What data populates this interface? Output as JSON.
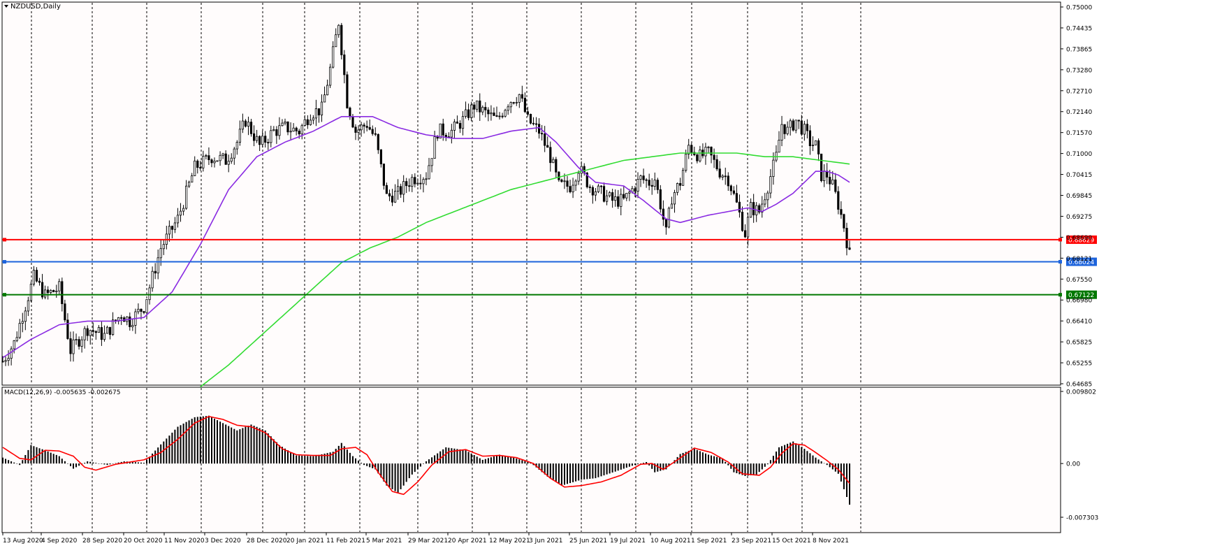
{
  "window": {
    "symbol_label": "NZDUSD,Daily",
    "macd_label": "MACD(12,26,9) -0.005635 -0.002675"
  },
  "colors": {
    "background": "#fffcfc",
    "grid": "#000000",
    "candle": "#000000",
    "ma_fast": "#8a2be2",
    "ma_slow": "#32dc32",
    "macd_signal": "#ff0000",
    "level_red": "#ff0000",
    "level_blue": "#1e64dc",
    "level_green": "#007800"
  },
  "price_axis": {
    "ticks": [
      "0.75000",
      "0.74435",
      "0.73865",
      "0.73280",
      "0.72710",
      "0.72140",
      "0.71570",
      "0.71000",
      "0.70415",
      "0.69845",
      "0.69275",
      "0.68690",
      "0.68121",
      "0.67550",
      "0.66980",
      "0.66410",
      "0.65825",
      "0.65255",
      "0.64685"
    ],
    "range": [
      0.64685,
      0.75
    ]
  },
  "macd_axis": {
    "ticks": [
      "0.009802",
      "0.00",
      "-0.007303"
    ],
    "range": [
      -0.007303,
      0.009802
    ]
  },
  "date_axis": {
    "labels": [
      "13 Aug 2020",
      "4 Sep 2020",
      "28 Sep 2020",
      "20 Oct 2020",
      "11 Nov 2020",
      "3 Dec 2020",
      "28 Dec 2020",
      "20 Jan 2021",
      "11 Feb 2021",
      "5 Mar 2021",
      "29 Mar 2021",
      "20 Apr 2021",
      "12 May 2021",
      "3 Jun 2021",
      "25 Jun 2021",
      "19 Jul 2021",
      "10 Aug 2021",
      "1 Sep 2021",
      "23 Sep 2021",
      "15 Oct 2021",
      "8 Nov 2021"
    ]
  },
  "levels": [
    {
      "name": "resistance-level-red",
      "price": 0.68629,
      "label": "0.68629",
      "color": "#ff0000"
    },
    {
      "name": "current-price-level-blue",
      "price": 0.68024,
      "label": "0.68024",
      "color": "#1e64dc"
    },
    {
      "name": "support-level-green",
      "price": 0.67122,
      "label": "0.67122",
      "color": "#007800"
    }
  ],
  "chart_data": {
    "type": "candlestick",
    "title": "NZDUSD,Daily",
    "ylim": [
      0.64685,
      0.75
    ],
    "price_waypoints": [
      [
        0,
        0.653
      ],
      [
        8,
        0.658
      ],
      [
        22,
        0.676
      ],
      [
        30,
        0.671
      ],
      [
        40,
        0.673
      ],
      [
        48,
        0.656
      ],
      [
        60,
        0.662
      ],
      [
        72,
        0.66
      ],
      [
        84,
        0.666
      ],
      [
        90,
        0.664
      ],
      [
        100,
        0.668
      ],
      [
        112,
        0.684
      ],
      [
        124,
        0.692
      ],
      [
        136,
        0.706
      ],
      [
        148,
        0.709
      ],
      [
        158,
        0.708
      ],
      [
        166,
        0.713
      ],
      [
        172,
        0.719
      ],
      [
        182,
        0.712
      ],
      [
        192,
        0.716
      ],
      [
        200,
        0.717
      ],
      [
        210,
        0.716
      ],
      [
        218,
        0.721
      ],
      [
        226,
        0.722
      ],
      [
        232,
        0.733
      ],
      [
        238,
        0.746
      ],
      [
        244,
        0.724
      ],
      [
        250,
        0.716
      ],
      [
        258,
        0.718
      ],
      [
        264,
        0.714
      ],
      [
        272,
        0.698
      ],
      [
        280,
        0.699
      ],
      [
        290,
        0.703
      ],
      [
        300,
        0.704
      ],
      [
        308,
        0.716
      ],
      [
        318,
        0.716
      ],
      [
        326,
        0.719
      ],
      [
        334,
        0.723
      ],
      [
        342,
        0.721
      ],
      [
        350,
        0.719
      ],
      [
        358,
        0.724
      ],
      [
        366,
        0.726
      ],
      [
        372,
        0.719
      ],
      [
        380,
        0.716
      ],
      [
        388,
        0.709
      ],
      [
        394,
        0.701
      ],
      [
        402,
        0.701
      ],
      [
        408,
        0.706
      ],
      [
        416,
        0.701
      ],
      [
        424,
        0.699
      ],
      [
        432,
        0.697
      ],
      [
        440,
        0.697
      ],
      [
        446,
        0.7
      ],
      [
        452,
        0.703
      ],
      [
        458,
        0.702
      ],
      [
        462,
        0.703
      ],
      [
        466,
        0.696
      ],
      [
        470,
        0.688
      ],
      [
        474,
        0.698
      ],
      [
        480,
        0.702
      ],
      [
        486,
        0.712
      ],
      [
        494,
        0.709
      ],
      [
        500,
        0.71
      ],
      [
        508,
        0.705
      ],
      [
        514,
        0.703
      ],
      [
        520,
        0.696
      ],
      [
        526,
        0.688
      ],
      [
        530,
        0.695
      ],
      [
        536,
        0.694
      ],
      [
        542,
        0.701
      ],
      [
        548,
        0.709
      ],
      [
        552,
        0.718
      ],
      [
        556,
        0.716
      ],
      [
        562,
        0.719
      ],
      [
        568,
        0.716
      ],
      [
        572,
        0.713
      ],
      [
        576,
        0.712
      ],
      [
        580,
        0.704
      ],
      [
        584,
        0.704
      ],
      [
        588,
        0.701
      ],
      [
        592,
        0.696
      ],
      [
        596,
        0.69
      ],
      [
        600,
        0.682
      ]
    ],
    "ma_fast_waypoints": [
      [
        0,
        0.654
      ],
      [
        20,
        0.659
      ],
      [
        40,
        0.663
      ],
      [
        60,
        0.664
      ],
      [
        80,
        0.664
      ],
      [
        100,
        0.665
      ],
      [
        120,
        0.672
      ],
      [
        140,
        0.685
      ],
      [
        160,
        0.7
      ],
      [
        180,
        0.709
      ],
      [
        200,
        0.713
      ],
      [
        220,
        0.716
      ],
      [
        240,
        0.72
      ],
      [
        250,
        0.72
      ],
      [
        262,
        0.72
      ],
      [
        280,
        0.717
      ],
      [
        300,
        0.715
      ],
      [
        320,
        0.714
      ],
      [
        340,
        0.714
      ],
      [
        360,
        0.716
      ],
      [
        380,
        0.717
      ],
      [
        392,
        0.713
      ],
      [
        408,
        0.706
      ],
      [
        420,
        0.702
      ],
      [
        440,
        0.701
      ],
      [
        454,
        0.697
      ],
      [
        470,
        0.692
      ],
      [
        480,
        0.691
      ],
      [
        500,
        0.693
      ],
      [
        514,
        0.694
      ],
      [
        528,
        0.695
      ],
      [
        538,
        0.694
      ],
      [
        548,
        0.696
      ],
      [
        560,
        0.699
      ],
      [
        568,
        0.702
      ],
      [
        576,
        0.705
      ],
      [
        584,
        0.705
      ],
      [
        592,
        0.704
      ],
      [
        600,
        0.702
      ]
    ],
    "ma_slow_waypoints": [
      [
        140,
        0.646
      ],
      [
        160,
        0.652
      ],
      [
        180,
        0.659
      ],
      [
        200,
        0.666
      ],
      [
        220,
        0.673
      ],
      [
        240,
        0.68
      ],
      [
        260,
        0.684
      ],
      [
        280,
        0.687
      ],
      [
        300,
        0.691
      ],
      [
        320,
        0.694
      ],
      [
        340,
        0.697
      ],
      [
        360,
        0.7
      ],
      [
        380,
        0.702
      ],
      [
        400,
        0.704
      ],
      [
        420,
        0.706
      ],
      [
        440,
        0.708
      ],
      [
        460,
        0.709
      ],
      [
        480,
        0.71
      ],
      [
        500,
        0.71
      ],
      [
        520,
        0.71
      ],
      [
        540,
        0.709
      ],
      [
        560,
        0.709
      ],
      [
        580,
        0.708
      ],
      [
        600,
        0.707
      ]
    ],
    "macd_waypoints": [
      [
        0,
        0.0008
      ],
      [
        12,
        -0.0002
      ],
      [
        20,
        0.0025
      ],
      [
        30,
        0.0018
      ],
      [
        40,
        0.001
      ],
      [
        50,
        -0.0007
      ],
      [
        60,
        0.0003
      ],
      [
        74,
        -0.0002
      ],
      [
        86,
        0.0003
      ],
      [
        100,
        0.0001
      ],
      [
        112,
        0.0026
      ],
      [
        124,
        0.005
      ],
      [
        136,
        0.0063
      ],
      [
        146,
        0.0065
      ],
      [
        156,
        0.0055
      ],
      [
        166,
        0.0045
      ],
      [
        176,
        0.0053
      ],
      [
        186,
        0.0045
      ],
      [
        196,
        0.0025
      ],
      [
        208,
        0.0011
      ],
      [
        220,
        0.001
      ],
      [
        234,
        0.0016
      ],
      [
        240,
        0.0028
      ],
      [
        248,
        0.001
      ],
      [
        256,
        -0.0002
      ],
      [
        264,
        -0.0008
      ],
      [
        272,
        -0.003
      ],
      [
        280,
        -0.004
      ],
      [
        290,
        -0.0015
      ],
      [
        300,
        0.0003
      ],
      [
        314,
        0.0022
      ],
      [
        328,
        0.0018
      ],
      [
        340,
        0.0005
      ],
      [
        352,
        0.0012
      ],
      [
        362,
        0.0008
      ],
      [
        374,
        0.0001
      ],
      [
        386,
        -0.0018
      ],
      [
        396,
        -0.003
      ],
      [
        410,
        -0.0022
      ],
      [
        420,
        -0.002
      ],
      [
        434,
        -0.0011
      ],
      [
        446,
        -0.0003
      ],
      [
        456,
        0.0002
      ],
      [
        462,
        -0.0012
      ],
      [
        470,
        -0.0008
      ],
      [
        480,
        0.0013
      ],
      [
        490,
        0.002
      ],
      [
        500,
        0.0012
      ],
      [
        510,
        0.0007
      ],
      [
        518,
        -0.0012
      ],
      [
        526,
        -0.0017
      ],
      [
        534,
        -0.0015
      ],
      [
        542,
        -0.0001
      ],
      [
        550,
        0.0022
      ],
      [
        560,
        0.003
      ],
      [
        568,
        0.002
      ],
      [
        576,
        0.0008
      ],
      [
        584,
        -0.0002
      ],
      [
        592,
        -0.0014
      ],
      [
        600,
        -0.0056
      ]
    ],
    "signal_waypoints": [
      [
        0,
        0.0022
      ],
      [
        12,
        0.0007
      ],
      [
        20,
        0.0005
      ],
      [
        30,
        0.0018
      ],
      [
        40,
        0.0017
      ],
      [
        50,
        0.001
      ],
      [
        58,
        -0.0005
      ],
      [
        66,
        -0.0009
      ],
      [
        80,
        -0.0001
      ],
      [
        100,
        0.0005
      ],
      [
        112,
        0.0015
      ],
      [
        124,
        0.0033
      ],
      [
        136,
        0.0055
      ],
      [
        146,
        0.0064
      ],
      [
        156,
        0.006
      ],
      [
        166,
        0.0052
      ],
      [
        176,
        0.005
      ],
      [
        186,
        0.0042
      ],
      [
        198,
        0.002
      ],
      [
        208,
        0.0012
      ],
      [
        220,
        0.0011
      ],
      [
        232,
        0.0011
      ],
      [
        240,
        0.002
      ],
      [
        250,
        0.0022
      ],
      [
        258,
        0.0012
      ],
      [
        266,
        -0.0012
      ],
      [
        276,
        -0.0038
      ],
      [
        284,
        -0.0042
      ],
      [
        294,
        -0.0025
      ],
      [
        304,
        -0.0002
      ],
      [
        316,
        0.0016
      ],
      [
        328,
        0.0019
      ],
      [
        340,
        0.001
      ],
      [
        352,
        0.0011
      ],
      [
        364,
        0.0008
      ],
      [
        376,
        0.0
      ],
      [
        388,
        -0.002
      ],
      [
        398,
        -0.0032
      ],
      [
        410,
        -0.003
      ],
      [
        424,
        -0.0025
      ],
      [
        438,
        -0.0016
      ],
      [
        452,
        -0.0001
      ],
      [
        460,
        0.0
      ],
      [
        468,
        -0.0008
      ],
      [
        478,
        0.0005
      ],
      [
        490,
        0.0021
      ],
      [
        502,
        0.0015
      ],
      [
        514,
        0.0002
      ],
      [
        524,
        -0.0014
      ],
      [
        536,
        -0.0016
      ],
      [
        544,
        -0.0005
      ],
      [
        552,
        0.0014
      ],
      [
        560,
        0.0027
      ],
      [
        568,
        0.0025
      ],
      [
        576,
        0.0015
      ],
      [
        584,
        0.0004
      ],
      [
        592,
        -0.0008
      ],
      [
        600,
        -0.0027
      ]
    ]
  }
}
